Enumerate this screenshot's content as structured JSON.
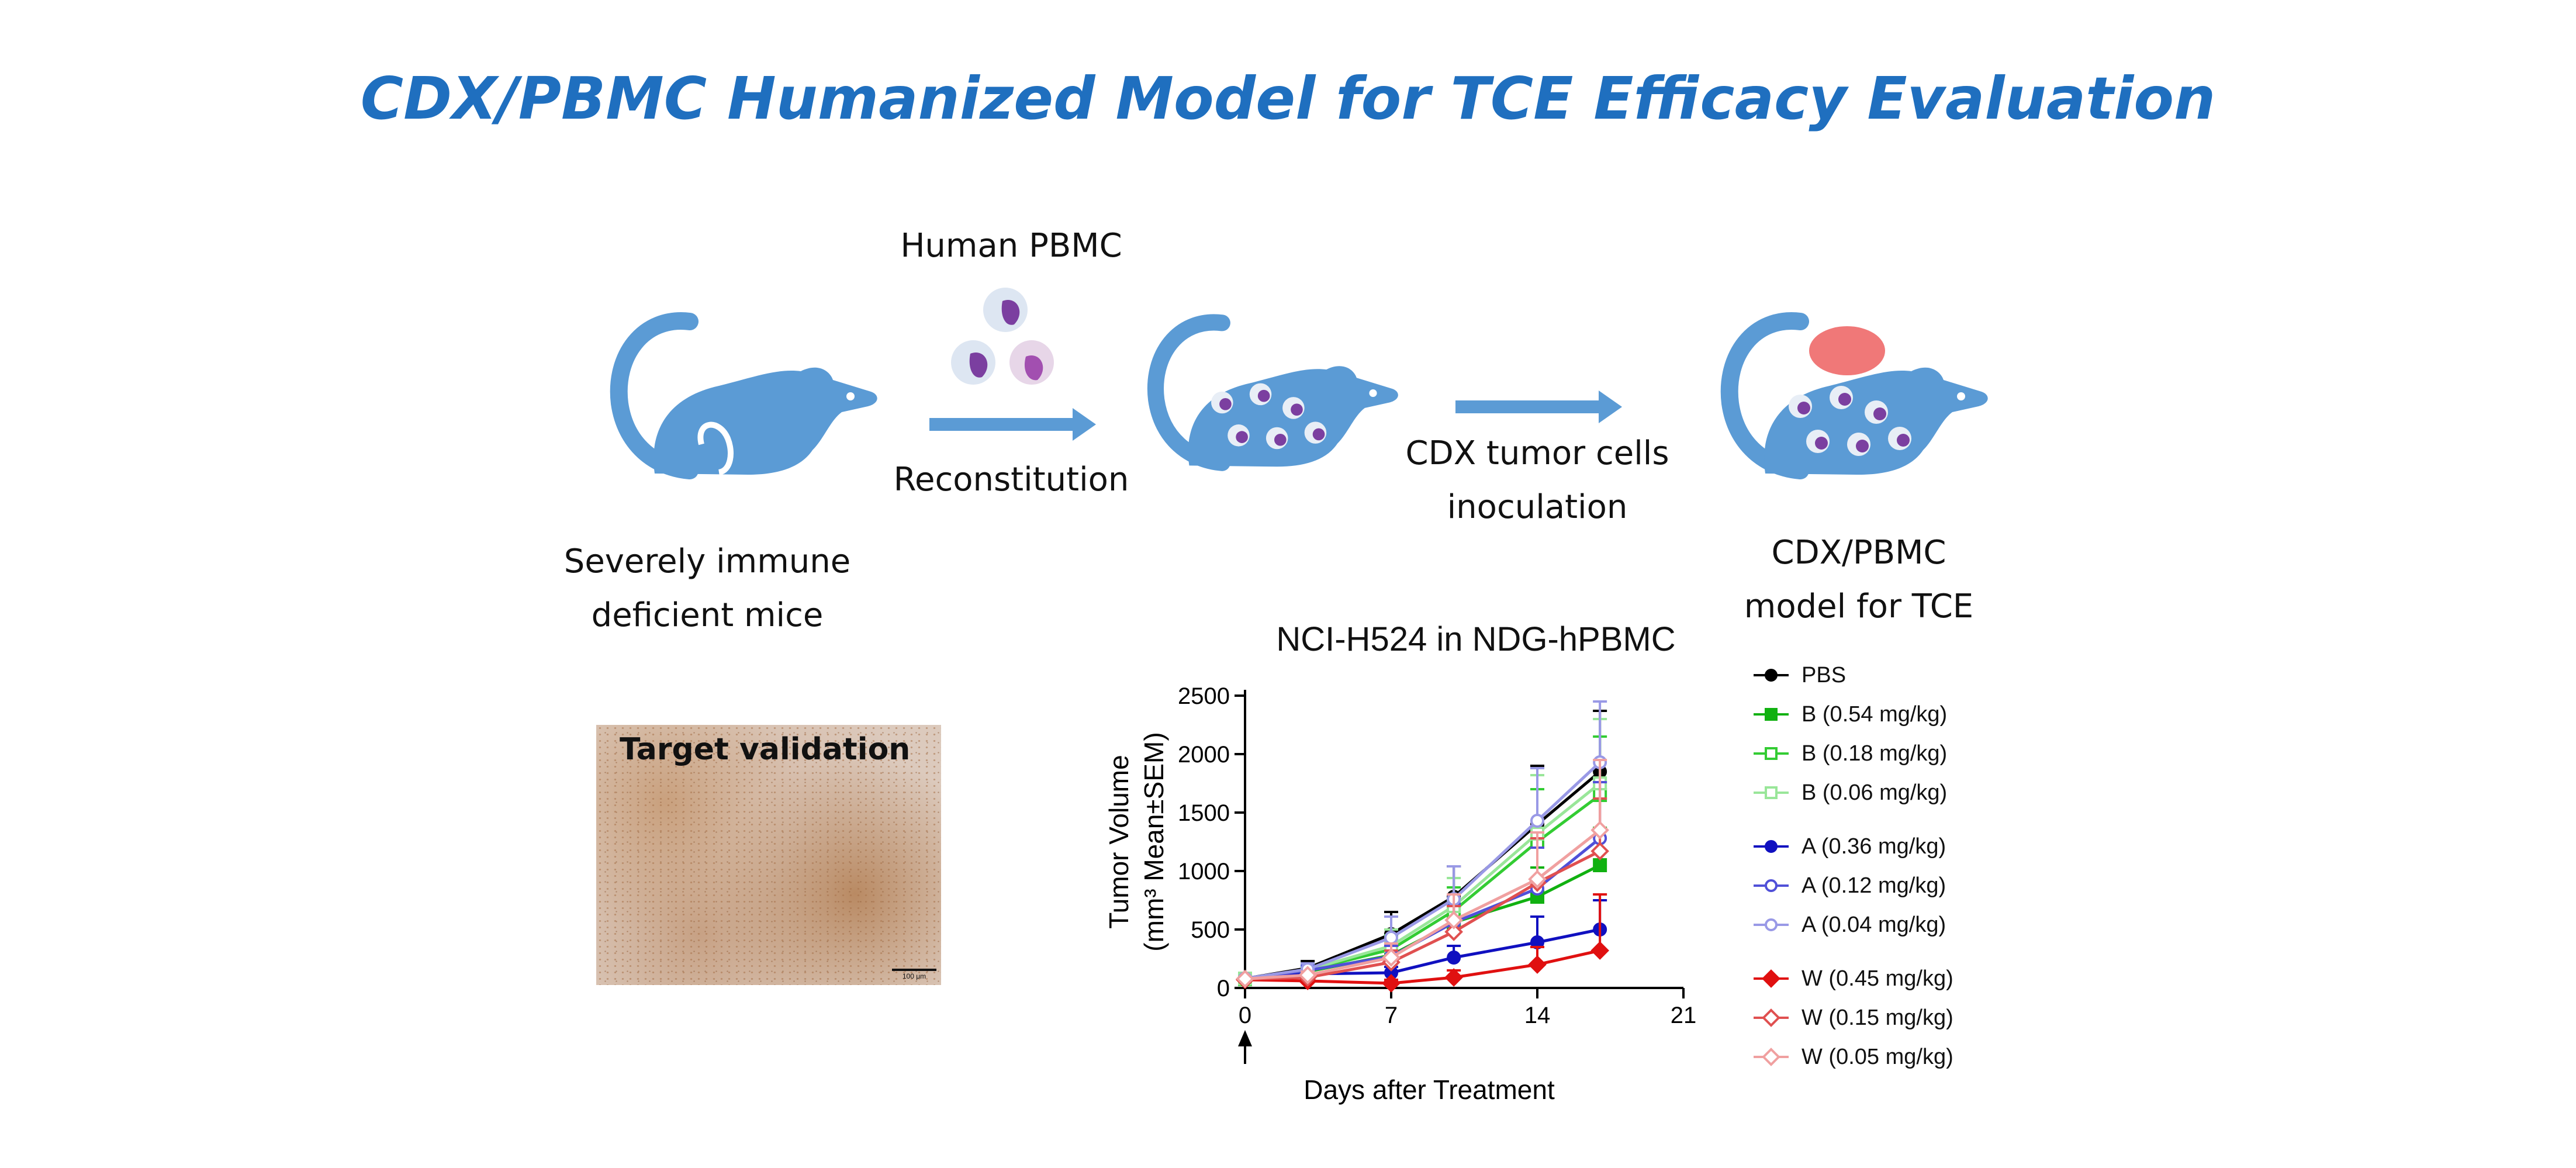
{
  "header": {
    "title": "CDX/PBMC Humanized Model for TCE Efficacy Evaluation"
  },
  "workflow": {
    "pbmc_label": "Human PBMC",
    "reconstitution_label": "Reconstitution",
    "inoculation_label": "CDX tumor cells\ninoculation",
    "mouse1_caption": "Severely immune\ndeficient mice",
    "model_caption": "CDX/PBMC\nmodel for TCE",
    "mouse_color": "#5b9bd5",
    "cell_color": "#7b3fa0",
    "tumor_color": "#f07878"
  },
  "ihc_panel": {
    "title": "Target validation",
    "scale_label": "100 μm"
  },
  "chart_data": {
    "type": "line",
    "title": "NCI-H524 in NDG-hPBMC",
    "xlabel": "Days after Treatment",
    "ylabel_line1": "Tumor Volume",
    "ylabel_line2": "(mm³ Mean±SEM)",
    "xlim": [
      0,
      21
    ],
    "ylim": [
      0,
      2500
    ],
    "xticks": [
      0,
      7,
      14,
      21
    ],
    "yticks": [
      0,
      500,
      1000,
      1500,
      2000,
      2500
    ],
    "x": [
      0,
      3,
      7,
      10,
      14,
      17
    ],
    "dosing_arrow_day": 0,
    "legend_position": "right",
    "series": [
      {
        "name": "PBS",
        "color": "#000000",
        "marker": "circle",
        "filled": true,
        "values": [
          80,
          170,
          460,
          780,
          1400,
          1850
        ],
        "errors": [
          10,
          60,
          190,
          260,
          500,
          520
        ]
      },
      {
        "name": "B (0.54 mg/kg)",
        "color": "#11b111",
        "marker": "square",
        "filled": true,
        "values": [
          75,
          140,
          280,
          560,
          780,
          1050
        ],
        "errors": [
          10,
          30,
          80,
          150,
          250,
          320
        ]
      },
      {
        "name": "B (0.18 mg/kg)",
        "color": "#33cc33",
        "marker": "square",
        "filled": false,
        "values": [
          78,
          150,
          330,
          660,
          1250,
          1650
        ],
        "errors": [
          10,
          40,
          120,
          200,
          450,
          500
        ]
      },
      {
        "name": "B (0.06 mg/kg)",
        "color": "#99e699",
        "marker": "square",
        "filled": false,
        "values": [
          80,
          155,
          360,
          700,
          1320,
          1750
        ],
        "errors": [
          10,
          40,
          140,
          240,
          500,
          550
        ]
      },
      {
        "name": "A (0.36 mg/kg)",
        "color": "#1010c0",
        "marker": "circle",
        "filled": true,
        "values": [
          80,
          120,
          130,
          260,
          390,
          500
        ],
        "errors": [
          10,
          30,
          50,
          100,
          220,
          250
        ]
      },
      {
        "name": "A (0.12 mg/kg)",
        "color": "#5050d8",
        "marker": "circle",
        "filled": false,
        "values": [
          80,
          150,
          270,
          560,
          850,
          1280
        ],
        "errors": [
          10,
          40,
          90,
          160,
          350,
          480
        ]
      },
      {
        "name": "A (0.04 mg/kg)",
        "color": "#9999e6",
        "marker": "circle",
        "filled": false,
        "values": [
          82,
          160,
          430,
          760,
          1430,
          1930
        ],
        "errors": [
          10,
          50,
          180,
          280,
          450,
          520
        ]
      },
      {
        "name": "W (0.45 mg/kg)",
        "color": "#e01010",
        "marker": "diamond",
        "filled": true,
        "values": [
          70,
          60,
          40,
          90,
          200,
          320
        ],
        "errors": [
          10,
          20,
          30,
          60,
          150,
          480
        ]
      },
      {
        "name": "W (0.15 mg/kg)",
        "color": "#e05050",
        "marker": "diamond",
        "filled": false,
        "values": [
          75,
          90,
          220,
          480,
          900,
          1170
        ],
        "errors": [
          10,
          30,
          100,
          220,
          380,
          450
        ]
      },
      {
        "name": "W (0.05 mg/kg)",
        "color": "#f0a0a0",
        "marker": "diamond",
        "filled": false,
        "values": [
          78,
          110,
          260,
          580,
          930,
          1350
        ],
        "errors": [
          10,
          30,
          120,
          220,
          400,
          600
        ]
      }
    ]
  }
}
